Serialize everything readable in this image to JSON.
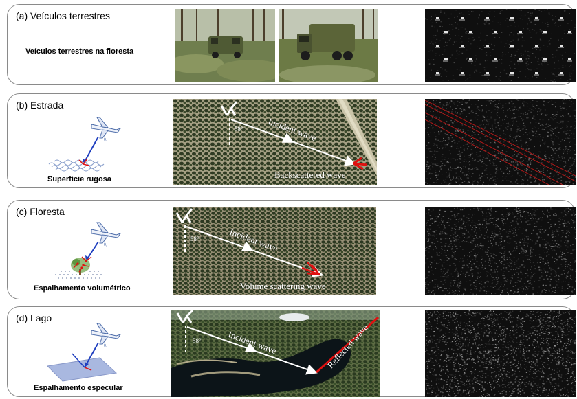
{
  "panels": [
    {
      "id": "a",
      "title": "(a) Veículos terrestres",
      "subtitle": "Veículos terrestres na floresta"
    },
    {
      "id": "b",
      "title": "(b) Estrada",
      "subtitle": "Superfície rugosa",
      "angle": "58°",
      "incident_label": "Incident wave",
      "return_label": "Backscattered wave"
    },
    {
      "id": "c",
      "title": "(c) Floresta",
      "subtitle": "Espalhamento volumétrico",
      "angle": "58°",
      "incident_label": "Incident wave",
      "return_label": "Volume scattering wave"
    },
    {
      "id": "d",
      "title": "(d) Lago",
      "subtitle": "Espalhamento especular",
      "angle": "58°",
      "incident_label": "Incident wave",
      "return_label": "Reflected wave"
    }
  ],
  "icons": [
    "airplane-icon",
    "radar-beam-icon",
    "rough-surface-icon",
    "tree-volume-icon",
    "flat-surface-icon"
  ],
  "colors": {
    "panel_border": "#8a8a8a",
    "beam_blue": "#1f3fbf",
    "scatter_red": "#e01010",
    "wave_arrow": "#ffffff",
    "forest_green": "#3d4a2a",
    "lake_dark": "#0c1418",
    "sar_dark": "#101010",
    "road_roi": "#b01818"
  }
}
